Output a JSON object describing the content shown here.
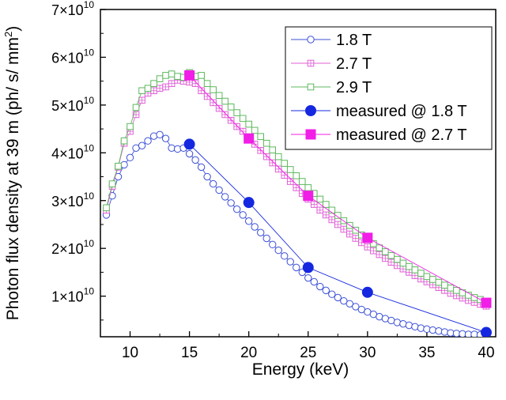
{
  "chart_data": {
    "type": "scatter",
    "xlabel": "Energy (keV)",
    "ylabel": "Photon flux density at 39 m (ph/ s/ mm²)",
    "xlim": [
      7.5,
      40.8
    ],
    "ylim": [
      1500000000.0,
      70000000000.0
    ],
    "x_ticks": [
      10,
      15,
      20,
      25,
      30,
      35,
      40
    ],
    "y_ticks": [
      {
        "value": 10000000000.0,
        "mant": "1",
        "exp": "10"
      },
      {
        "value": 20000000000.0,
        "mant": "2",
        "exp": "10"
      },
      {
        "value": 30000000000.0,
        "mant": "3",
        "exp": "10"
      },
      {
        "value": 40000000000.0,
        "mant": "4",
        "exp": "10"
      },
      {
        "value": 50000000000.0,
        "mant": "5",
        "exp": "10"
      },
      {
        "value": 60000000000.0,
        "mant": "6",
        "exp": "10"
      },
      {
        "value": 70000000000.0,
        "mant": "7",
        "exp": "10"
      }
    ],
    "grid": false,
    "legend_position": "top-right",
    "series": [
      {
        "name": "1.8 T",
        "color": "#3b4fd6",
        "marker": "circle",
        "filled": false,
        "x": [
          8,
          8.5,
          9,
          9.5,
          10,
          10.5,
          11,
          11.5,
          12,
          12.5,
          13,
          13.5,
          14,
          14.5,
          15,
          15.5,
          16,
          16.5,
          17,
          17.5,
          18,
          18.5,
          19,
          19.5,
          20,
          20.5,
          21,
          21.5,
          22,
          22.5,
          23,
          23.5,
          24,
          24.5,
          25,
          25.5,
          26,
          26.5,
          27,
          27.5,
          28,
          28.5,
          29,
          29.5,
          30,
          30.5,
          31,
          31.5,
          32,
          32.5,
          33,
          33.5,
          34,
          34.5,
          35,
          35.5,
          36,
          36.5,
          37,
          37.5,
          38,
          38.5,
          39,
          39.5,
          40
        ],
        "y": [
          27000000000.0,
          31000000000.0,
          35000000000.0,
          37500000000.0,
          39000000000.0,
          41000000000.0,
          41500000000.0,
          42500000000.0,
          43500000000.0,
          43800000000.0,
          43000000000.0,
          41000000000.0,
          40800000000.0,
          41000000000.0,
          39800000000.0,
          38500000000.0,
          37000000000.0,
          35000000000.0,
          33500000000.0,
          32200000000.0,
          30800000000.0,
          29500000000.0,
          28200000000.0,
          27000000000.0,
          25700000000.0,
          24500000000.0,
          23300000000.0,
          22100000000.0,
          20800000000.0,
          19600000000.0,
          18400000000.0,
          17200000000.0,
          16000000000.0,
          15000000000.0,
          13800000000.0,
          13000000000.0,
          12000000000.0,
          11200000000.0,
          10400000000.0,
          9700000000.0,
          9000000000.0,
          8400000000.0,
          7800000000.0,
          7200000000.0,
          6700000000.0,
          6200000000.0,
          5700000000.0,
          5300000000.0,
          4900000000.0,
          4500000000.0,
          4200000000.0,
          3900000000.0,
          3600000000.0,
          3300000000.0,
          3100000000.0,
          2900000000.0,
          2700000000.0,
          2500000000.0,
          2300000000.0,
          2200000000.0,
          2100000000.0,
          2000000000.0,
          2000000000.0,
          1900000000.0,
          1900000000.0
        ]
      },
      {
        "name": "2.7 T",
        "color": "#e05fd6",
        "marker": "hatched-square",
        "filled": false,
        "x": [
          8,
          8.5,
          9,
          9.5,
          10,
          10.5,
          11,
          11.5,
          12,
          12.5,
          13,
          13.5,
          14,
          14.5,
          15,
          15.5,
          16,
          16.5,
          17,
          17.5,
          18,
          18.5,
          19,
          19.5,
          20,
          20.5,
          21,
          21.5,
          22,
          22.5,
          23,
          23.5,
          24,
          24.5,
          25,
          25.5,
          26,
          26.5,
          27,
          27.5,
          28,
          28.5,
          29,
          29.5,
          30,
          30.5,
          31,
          31.5,
          32,
          32.5,
          33,
          33.5,
          34,
          34.5,
          35,
          35.5,
          36,
          36.5,
          37,
          37.5,
          38,
          38.5,
          39,
          39.5,
          40
        ],
        "y": [
          28000000000.0,
          33000000000.0,
          37000000000.0,
          42000000000.0,
          44500000000.0,
          48000000000.0,
          51000000000.0,
          52500000000.0,
          53000000000.0,
          53500000000.0,
          53800000000.0,
          54500000000.0,
          55200000000.0,
          55000000000.0,
          54800000000.0,
          54500000000.0,
          53000000000.0,
          51800000000.0,
          50500000000.0,
          49300000000.0,
          48000000000.0,
          46800000000.0,
          45500000000.0,
          44500000000.0,
          43200000000.0,
          41800000000.0,
          40500000000.0,
          39200000000.0,
          37900000000.0,
          36600000000.0,
          35300000000.0,
          34000000000.0,
          32700000000.0,
          31500000000.0,
          30300000000.0,
          29200000000.0,
          28000000000.0,
          27000000000.0,
          26000000000.0,
          25000000000.0,
          24000000000.0,
          23000000000.0,
          22100000000.0,
          21200000000.0,
          20300000000.0,
          19500000000.0,
          18700000000.0,
          17900000000.0,
          17100000000.0,
          16400000000.0,
          15700000000.0,
          15000000000.0,
          14300000000.0,
          13600000000.0,
          13000000000.0,
          12400000000.0,
          11800000000.0,
          11200000000.0,
          10600000000.0,
          10100000000.0,
          9600000000.0,
          9100000000.0,
          8700000000.0,
          8300000000.0,
          7900000000.0
        ]
      },
      {
        "name": "2.9 T",
        "color": "#5cb85c",
        "marker": "square",
        "filled": false,
        "x": [
          8,
          8.5,
          9,
          9.5,
          10,
          10.5,
          11,
          11.5,
          12,
          12.5,
          13,
          13.5,
          14,
          14.5,
          15,
          15.5,
          16,
          16.5,
          17,
          17.5,
          18,
          18.5,
          19,
          19.5,
          20,
          20.5,
          21,
          21.5,
          22,
          22.5,
          23,
          23.5,
          24,
          24.5,
          25,
          25.5,
          26,
          26.5,
          27,
          27.5,
          28,
          28.5,
          29,
          29.5,
          30,
          30.5,
          31,
          31.5,
          32,
          32.5,
          33,
          33.5,
          34,
          34.5,
          35,
          35.5,
          36,
          36.5,
          37,
          37.5,
          38,
          38.5,
          39,
          39.5,
          40
        ],
        "y": [
          28500000000.0,
          33500000000.0,
          37200000000.0,
          42500000000.0,
          45500000000.0,
          49500000000.0,
          53000000000.0,
          53500000000.0,
          54500000000.0,
          55500000000.0,
          56200000000.0,
          56500000000.0,
          56000000000.0,
          55800000000.0,
          56800000000.0,
          56000000000.0,
          56200000000.0,
          54500000000.0,
          53200000000.0,
          52000000000.0,
          50800000000.0,
          49600000000.0,
          48400000000.0,
          47200000000.0,
          46000000000.0,
          44700000000.0,
          43400000000.0,
          42000000000.0,
          40600000000.0,
          39200000000.0,
          37800000000.0,
          36500000000.0,
          35200000000.0,
          34000000000.0,
          32700000000.0,
          31500000000.0,
          30300000000.0,
          29200000000.0,
          28000000000.0,
          26900000000.0,
          25800000000.0,
          24800000000.0,
          23800000000.0,
          22800000000.0,
          21900000000.0,
          21000000000.0,
          20100000000.0,
          19300000000.0,
          18500000000.0,
          17700000000.0,
          16900000000.0,
          16200000000.0,
          15500000000.0,
          14800000000.0,
          14100000000.0,
          13500000000.0,
          12900000000.0,
          12300000000.0,
          11700000000.0,
          11200000000.0,
          10700000000.0,
          10200000000.0,
          9700000000.0,
          9300000000.0,
          8900000000.0
        ]
      },
      {
        "name": "measured @ 1.8 T",
        "color": "#1528e0",
        "marker": "circle",
        "filled": true,
        "x": [
          15,
          20,
          25,
          30,
          40
        ],
        "y": [
          41800000000.0,
          29600000000.0,
          16000000000.0,
          10800000000.0,
          2400000000.0
        ]
      },
      {
        "name": "measured @ 2.7 T",
        "color": "#f01ee6",
        "marker": "square",
        "filled": true,
        "x": [
          15,
          20,
          25,
          30,
          40
        ],
        "y": [
          56200000000.0,
          43000000000.0,
          31000000000.0,
          22200000000.0,
          8600000000.0
        ]
      }
    ]
  }
}
